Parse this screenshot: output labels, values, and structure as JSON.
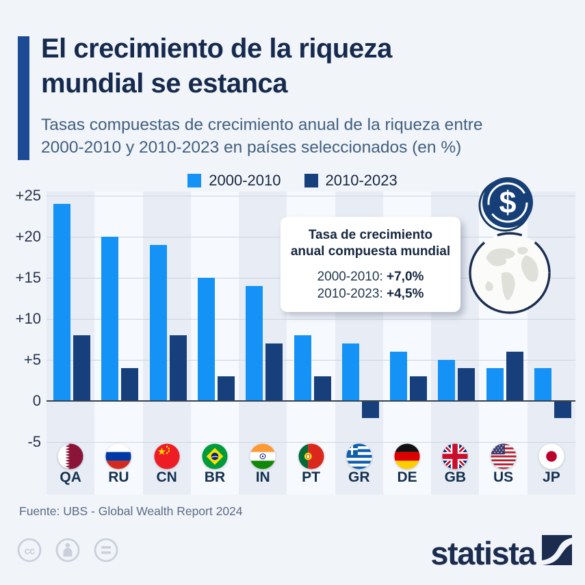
{
  "header": {
    "title_line1": "El crecimiento de la riqueza",
    "title_line2": "mundial se estanca",
    "subtitle_line1": "Tasas compuestas de crecimiento anual de la riqueza entre",
    "subtitle_line2": "2000-2010 y 2010-2023 en países seleccionados (en %)"
  },
  "chart_data": {
    "type": "bar",
    "title": "Tasas compuestas de crecimiento anual de la riqueza entre 2000-2010 y 2010-2023 en países seleccionados (en %)",
    "categories": [
      "QA",
      "RU",
      "CN",
      "BR",
      "IN",
      "PT",
      "GR",
      "DE",
      "GB",
      "US",
      "JP"
    ],
    "series": [
      {
        "name": "2000-2010",
        "color": "#1492f5",
        "values": [
          24,
          20,
          19,
          15,
          14,
          8,
          7,
          6,
          5,
          4,
          4
        ]
      },
      {
        "name": "2010-2023",
        "color": "#163f7c",
        "values": [
          8,
          4,
          8,
          3,
          7,
          3,
          -2,
          3,
          4,
          6,
          -2
        ]
      }
    ],
    "ylim": [
      -5,
      25
    ],
    "yticks": [
      {
        "label": "+25",
        "value": 25
      },
      {
        "label": "+20",
        "value": 20
      },
      {
        "label": "+15",
        "value": 15
      },
      {
        "label": "+10",
        "value": 10
      },
      {
        "label": "+5",
        "value": 5
      },
      {
        "label": "0",
        "value": 0
      },
      {
        "label": "-5",
        "value": -5
      }
    ],
    "grid": "horizontal",
    "legend_position": "top-center"
  },
  "callout": {
    "title_line1": "Tasa de crecimiento",
    "title_line2": "anual compuesta mundial",
    "rows": [
      {
        "label": "2000-2010:",
        "value": "+7,0%"
      },
      {
        "label": "2010-2023:",
        "value": "+4,5%"
      }
    ]
  },
  "icons": {
    "dollar_sign": "$",
    "license": [
      "cc-icon",
      "attribution-icon",
      "equals-icon"
    ]
  },
  "source": "Fuente: UBS - Global Wealth Report 2024",
  "branding": {
    "logo_text": "statista"
  },
  "colors": {
    "title": "#152a4d",
    "accent_bar": "#1d4a94",
    "series_light_blue": "#1492f5",
    "series_dark_blue": "#163f7c",
    "background": "#f1f4f9"
  }
}
